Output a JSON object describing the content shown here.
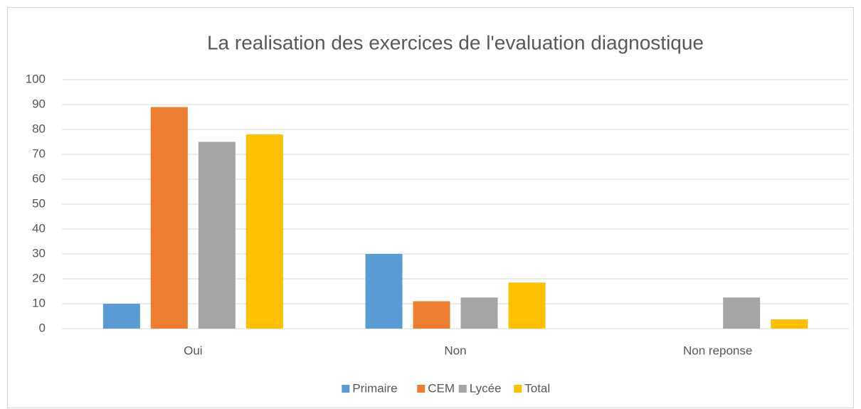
{
  "chart_data": {
    "type": "bar",
    "title": "La realisation des exercices de l'evaluation diagnostique",
    "categories": [
      "Oui",
      "Non",
      "Non reponse"
    ],
    "series": [
      {
        "name": "Primaire",
        "color": "#5b9bd5",
        "values": [
          10,
          30,
          0
        ]
      },
      {
        "name": "CEM",
        "color": "#ed7d31",
        "values": [
          89,
          11,
          0
        ]
      },
      {
        "name": "Lycée",
        "color": "#a5a5a5",
        "values": [
          75,
          12.5,
          12.5
        ]
      },
      {
        "name": "Total",
        "color": "#ffc000",
        "values": [
          78,
          18.5,
          3.7
        ]
      }
    ],
    "ylim": [
      0,
      100
    ],
    "yticks": [
      0,
      10,
      20,
      30,
      40,
      50,
      60,
      70,
      80,
      90,
      100
    ],
    "grid": true,
    "legend": "bottom"
  }
}
